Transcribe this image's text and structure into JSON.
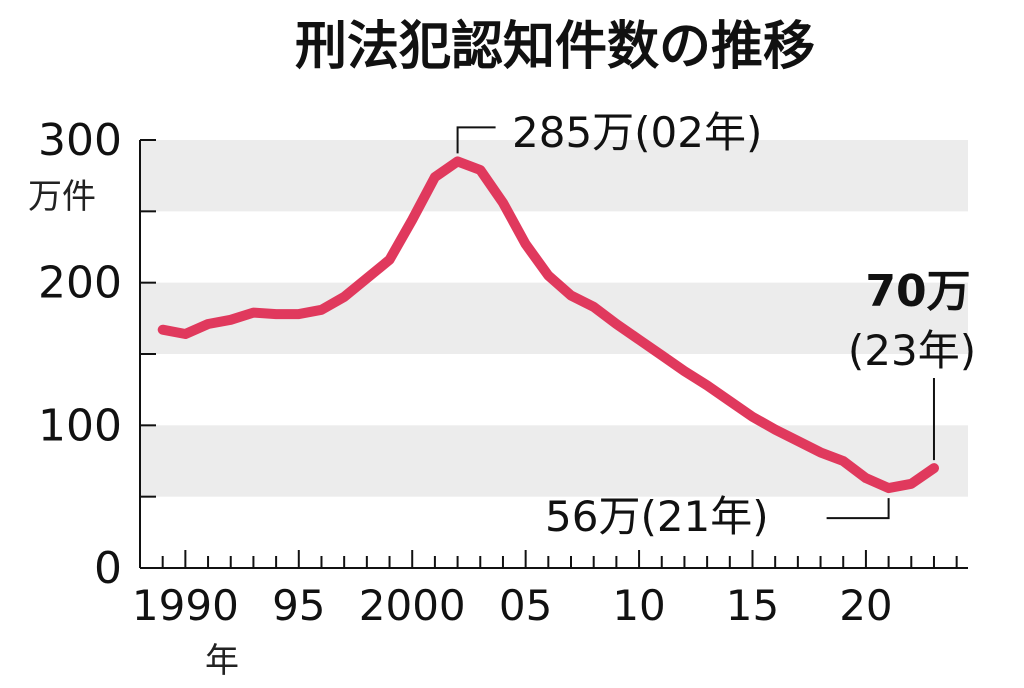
{
  "chart_data": {
    "type": "line",
    "title": "刑法犯認知件数の推移",
    "ylabel": "万件",
    "xlabel": "年",
    "ylim": [
      0,
      300
    ],
    "xlim": [
      1988,
      2024.5
    ],
    "yticks": [
      {
        "value": 0,
        "label": "0"
      },
      {
        "value": 100,
        "label": "100"
      },
      {
        "value": 200,
        "label": "200"
      },
      {
        "value": 300,
        "label": "300"
      }
    ],
    "xticks": [
      {
        "value": 1990,
        "label": "1990"
      },
      {
        "value": 1995,
        "label": "95"
      },
      {
        "value": 2000,
        "label": "2000"
      },
      {
        "value": 2005,
        "label": "05"
      },
      {
        "value": 2010,
        "label": "10"
      },
      {
        "value": 2015,
        "label": "15"
      },
      {
        "value": 2020,
        "label": "20"
      }
    ],
    "bands": [
      [
        50,
        100
      ],
      [
        150,
        200
      ],
      [
        250,
        300
      ]
    ],
    "grid": false,
    "series": [
      {
        "color": "#e0395d",
        "x": [
          1989,
          1990,
          1991,
          1992,
          1993,
          1994,
          1995,
          1996,
          1997,
          1998,
          1999,
          2000,
          2001,
          2002,
          2003,
          2004,
          2005,
          2006,
          2007,
          2008,
          2009,
          2010,
          2011,
          2012,
          2013,
          2014,
          2015,
          2016,
          2017,
          2018,
          2019,
          2020,
          2021,
          2022,
          2023
        ],
        "values": [
          167,
          164,
          171,
          174,
          179,
          178,
          178,
          181,
          190,
          203,
          216,
          244,
          274,
          285,
          279,
          256,
          227,
          205,
          191,
          183,
          171,
          160,
          149,
          138,
          128,
          117,
          106,
          97,
          89,
          81,
          75,
          63,
          56,
          59,
          70
        ]
      }
    ],
    "annotations": {
      "peak": {
        "text": "285万(02年)",
        "x": 2002,
        "y": 285
      },
      "low": {
        "text": "56万(21年)",
        "x": 2021,
        "y": 56
      },
      "latest_value": "70万",
      "latest_year": "(23年)",
      "latest_x": 2023,
      "latest_y": 70
    }
  }
}
